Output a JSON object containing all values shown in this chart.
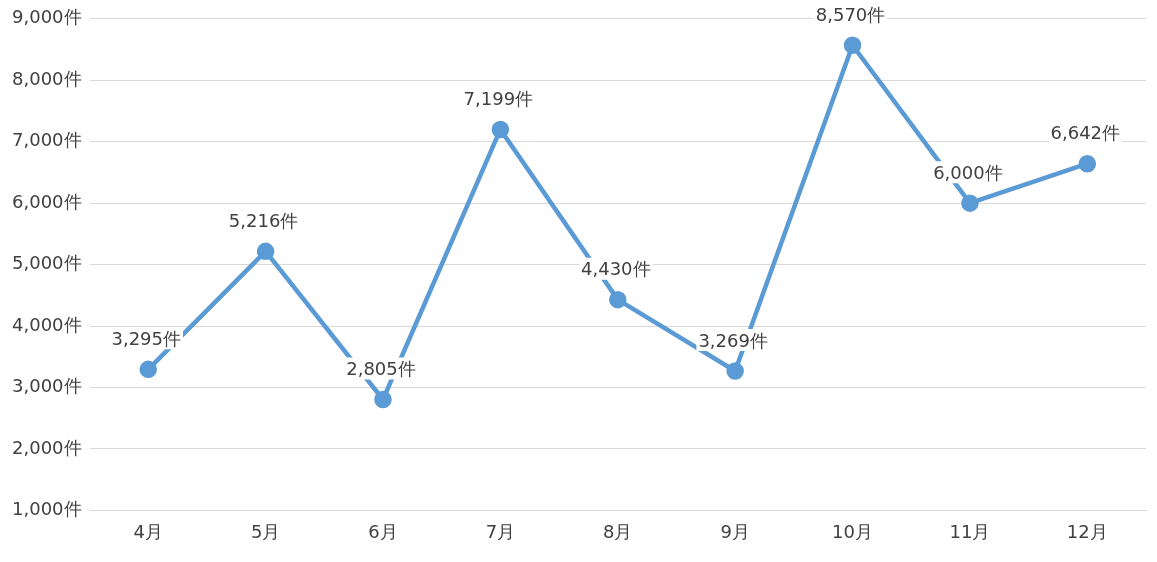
{
  "chart_data": {
    "type": "line",
    "categories": [
      "4月",
      "5月",
      "6月",
      "7月",
      "8月",
      "9月",
      "10月",
      "11月",
      "12月"
    ],
    "series": [
      {
        "color": "#5b9bd5",
        "values": [
          3295,
          5216,
          2805,
          7199,
          4430,
          3269,
          8570,
          6000,
          6642
        ],
        "value_labels": [
          "3,295件",
          "5,216件",
          "2,805件",
          "7,199件",
          "4,430件",
          "3,269件",
          "8,570件",
          "6,000件",
          "6,642件"
        ]
      }
    ],
    "ylim": [
      1000,
      9000
    ],
    "yticks": [
      {
        "value": 1000,
        "label": "1,000件"
      },
      {
        "value": 2000,
        "label": "2,000件"
      },
      {
        "value": 3000,
        "label": "3,000件"
      },
      {
        "value": 4000,
        "label": "4,000件"
      },
      {
        "value": 5000,
        "label": "5,000件"
      },
      {
        "value": 6000,
        "label": "6,000件"
      },
      {
        "value": 7000,
        "label": "7,000件"
      },
      {
        "value": 8000,
        "label": "8,000件"
      },
      {
        "value": 9000,
        "label": "9,000件"
      }
    ],
    "grid": "y",
    "legend": false,
    "marker": "circle",
    "line_style": "solid"
  }
}
